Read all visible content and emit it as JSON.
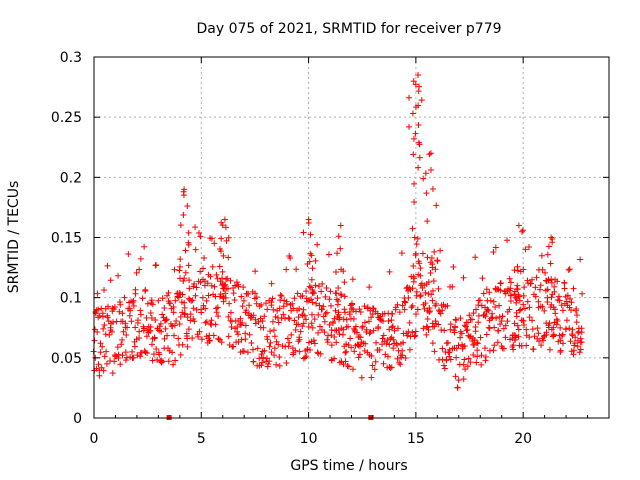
{
  "chart_data": {
    "type": "scatter",
    "title": "Day 075 of 2021, SRMTID for receiver p779",
    "xlabel": "GPS time / hours",
    "ylabel": "SRMTID / TECUs",
    "xlim": [
      0,
      24
    ],
    "ylim": [
      0,
      0.3
    ],
    "x_ticks": [
      0,
      5,
      10,
      15,
      20
    ],
    "x_tick_labels": [
      "0",
      "5",
      "10",
      "15",
      "20"
    ],
    "y_ticks": [
      0,
      0.05,
      0.1,
      0.15,
      0.2,
      0.25,
      0.3
    ],
    "y_tick_labels": [
      "0",
      "0.05",
      "0.1",
      "0.15",
      "0.2",
      "0.25",
      "0.3"
    ],
    "grid": true,
    "marker": "plus",
    "color": "#ff0000",
    "x_start": 0.0,
    "x_step": 0.05,
    "x_end": 22.8,
    "clusters": [
      {
        "x": 0.8,
        "value": 0.06
      },
      {
        "x": 2.0,
        "value": 0.075
      },
      {
        "x": 3.8,
        "value": 0.07
      },
      {
        "x": 4.5,
        "value": 0.09
      },
      {
        "x": 6.5,
        "value": 0.085
      },
      {
        "x": 8.0,
        "value": 0.065
      },
      {
        "x": 10.5,
        "value": 0.08
      },
      {
        "x": 12.5,
        "value": 0.06
      },
      {
        "x": 14.0,
        "value": 0.06
      },
      {
        "x": 15.2,
        "value": 0.1
      },
      {
        "x": 17.0,
        "value": 0.05
      },
      {
        "x": 18.6,
        "value": 0.08
      },
      {
        "x": 21.0,
        "value": 0.085
      },
      {
        "x": 22.7,
        "value": 0.075
      }
    ],
    "peaks": [
      {
        "x": 4.2,
        "value": 0.19
      },
      {
        "x": 6.1,
        "value": 0.165
      },
      {
        "x": 10.0,
        "value": 0.165
      },
      {
        "x": 11.5,
        "value": 0.16
      },
      {
        "x": 14.9,
        "value": 0.28
      },
      {
        "x": 15.1,
        "value": 0.285
      },
      {
        "x": 15.7,
        "value": 0.22
      },
      {
        "x": 19.8,
        "value": 0.16
      },
      {
        "x": 21.3,
        "value": 0.15
      }
    ],
    "gaps": [
      3.5,
      12.9
    ]
  }
}
